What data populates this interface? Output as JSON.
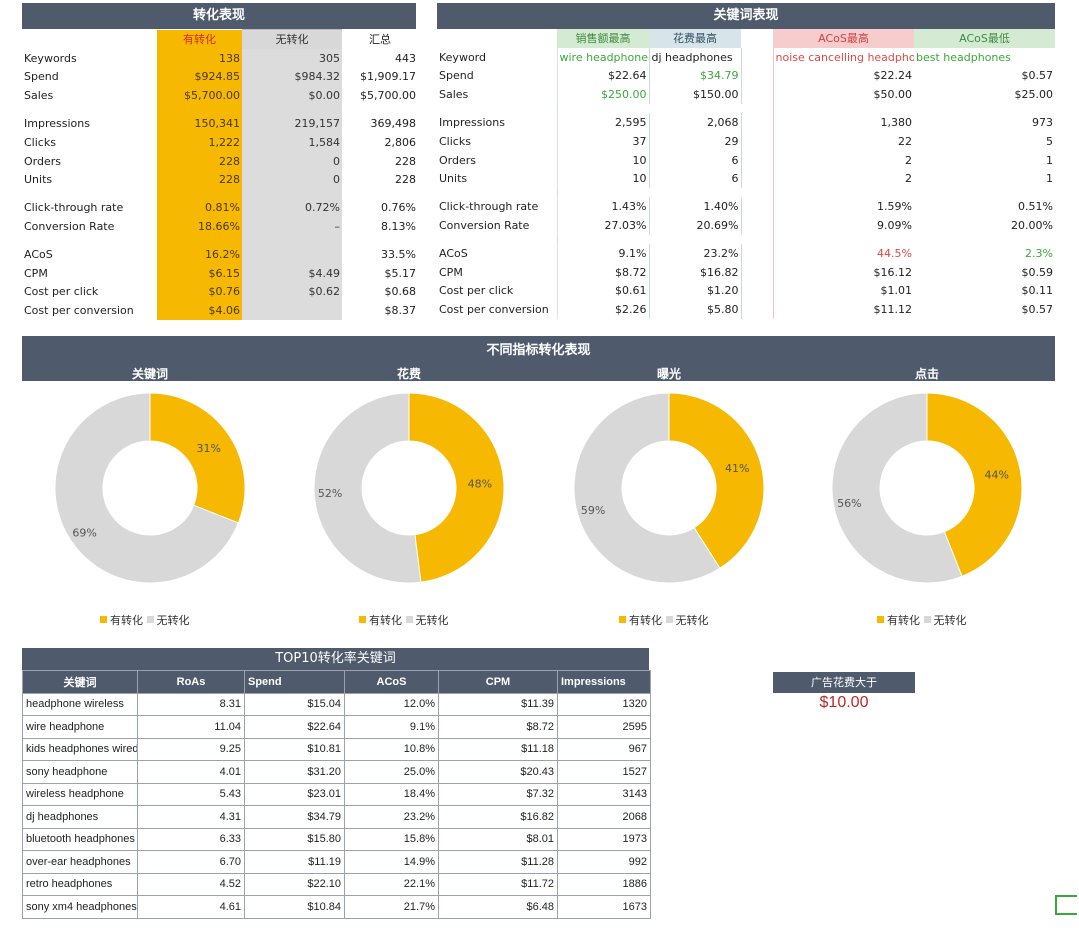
{
  "conversion_panel": {
    "title": "转化表现",
    "col_yes": "有转化",
    "col_no": "无转化",
    "col_total": "汇总",
    "rows": [
      {
        "label": "Keywords",
        "yes": "138",
        "no": "305",
        "total": "443"
      },
      {
        "label": "Spend",
        "yes": "$924.85",
        "no": "$984.32",
        "total": "$1,909.17"
      },
      {
        "label": "Sales",
        "yes": "$5,700.00",
        "no": "$0.00",
        "total": "$5,700.00"
      },
      {
        "gap": true
      },
      {
        "label": "Impressions",
        "yes": "150,341",
        "no": "219,157",
        "total": "369,498"
      },
      {
        "label": "Clicks",
        "yes": "1,222",
        "no": "1,584",
        "total": "2,806"
      },
      {
        "label": "Orders",
        "yes": "228",
        "no": "0",
        "total": "228"
      },
      {
        "label": "Units",
        "yes": "228",
        "no": "0",
        "total": "228"
      },
      {
        "gap": true
      },
      {
        "label": "Click-through rate",
        "yes": "0.81%",
        "no": "0.72%",
        "total": "0.76%"
      },
      {
        "label": "Conversion Rate",
        "yes": "18.66%",
        "no": "–",
        "total": "8.13%"
      },
      {
        "gap": true
      },
      {
        "label": "ACoS",
        "yes": "16.2%",
        "no": "",
        "total": "33.5%"
      },
      {
        "label": "CPM",
        "yes": "$6.15",
        "no": "$4.49",
        "total": "$5.17"
      },
      {
        "label": "Cost per click",
        "yes": "$0.76",
        "no": "$0.62",
        "total": "$0.68"
      },
      {
        "label": "Cost per conversion",
        "yes": "$4.06",
        "no": "",
        "total": "$8.37"
      }
    ]
  },
  "keyword_panel": {
    "title": "关键词表现",
    "headers": [
      "销售额最高",
      "花费最高",
      "ACoS最高",
      "ACoS最低"
    ],
    "rows": [
      {
        "label": "Keyword",
        "v": [
          "wire headphone",
          "dj headphones",
          "noise cancelling headphon",
          "best headphones"
        ]
      },
      {
        "label": "Spend",
        "v": [
          "$22.64",
          "$34.79",
          "$22.24",
          "$0.57"
        ]
      },
      {
        "label": "Sales",
        "v": [
          "$250.00",
          "$150.00",
          "$50.00",
          "$25.00"
        ]
      },
      {
        "gap": true
      },
      {
        "label": "Impressions",
        "v": [
          "2,595",
          "2,068",
          "1,380",
          "973"
        ]
      },
      {
        "label": "Clicks",
        "v": [
          "37",
          "29",
          "22",
          "5"
        ]
      },
      {
        "label": "Orders",
        "v": [
          "10",
          "6",
          "2",
          "1"
        ]
      },
      {
        "label": "Units",
        "v": [
          "10",
          "6",
          "2",
          "1"
        ]
      },
      {
        "gap": true
      },
      {
        "label": "Click-through rate",
        "v": [
          "1.43%",
          "1.40%",
          "1.59%",
          "0.51%"
        ]
      },
      {
        "label": "Conversion Rate",
        "v": [
          "27.03%",
          "20.69%",
          "9.09%",
          "20.00%"
        ]
      },
      {
        "gap": true
      },
      {
        "label": "ACoS",
        "v": [
          "9.1%",
          "23.2%",
          "44.5%",
          "2.3%"
        ]
      },
      {
        "label": "CPM",
        "v": [
          "$8.72",
          "$16.82",
          "$16.12",
          "$0.59"
        ]
      },
      {
        "label": "Cost per click",
        "v": [
          "$0.61",
          "$1.20",
          "$1.01",
          "$0.11"
        ]
      },
      {
        "label": "Cost per conversion",
        "v": [
          "$2.26",
          "$5.80",
          "$11.12",
          "$0.57"
        ]
      }
    ]
  },
  "charts_panel": {
    "title": "不同指标转化表现"
  },
  "chart_data": [
    {
      "type": "pie",
      "title": "关键词",
      "categories": [
        "有转化",
        "无转化"
      ],
      "values": [
        31,
        69
      ],
      "colors": [
        "#f6b800",
        "#d8d8d8"
      ]
    },
    {
      "type": "pie",
      "title": "花费",
      "categories": [
        "有转化",
        "无转化"
      ],
      "values": [
        48,
        52
      ],
      "colors": [
        "#f6b800",
        "#d8d8d8"
      ]
    },
    {
      "type": "pie",
      "title": "曝光",
      "categories": [
        "有转化",
        "无转化"
      ],
      "values": [
        41,
        59
      ],
      "colors": [
        "#f6b800",
        "#d8d8d8"
      ]
    },
    {
      "type": "pie",
      "title": "点击",
      "categories": [
        "有转化",
        "无转化"
      ],
      "values": [
        44,
        56
      ],
      "colors": [
        "#f6b800",
        "#d8d8d8"
      ]
    }
  ],
  "top10": {
    "title": "TOP10转化率关键词",
    "headers": [
      "关键词",
      "RoAs",
      "Spend",
      "ACoS",
      "CPM",
      "Impressions"
    ],
    "rows": [
      [
        "headphone wireless",
        "8.31",
        "$15.04",
        "12.0%",
        "$11.39",
        "1320"
      ],
      [
        "wire headphone",
        "11.04",
        "$22.64",
        "9.1%",
        "$8.72",
        "2595"
      ],
      [
        "kids headphones wired",
        "9.25",
        "$10.81",
        "10.8%",
        "$11.18",
        "967"
      ],
      [
        "sony headphone",
        "4.01",
        "$31.20",
        "25.0%",
        "$20.43",
        "1527"
      ],
      [
        "wireless headphone",
        "5.43",
        "$23.01",
        "18.4%",
        "$7.32",
        "3143"
      ],
      [
        "dj headphones",
        "4.31",
        "$34.79",
        "23.2%",
        "$16.82",
        "2068"
      ],
      [
        "bluetooth headphones",
        "6.33",
        "$15.80",
        "15.8%",
        "$8.01",
        "1973"
      ],
      [
        "over-ear headphones",
        "6.70",
        "$11.19",
        "14.9%",
        "$11.28",
        "992"
      ],
      [
        "retro headphones",
        "4.52",
        "$22.10",
        "22.1%",
        "$11.72",
        "1886"
      ],
      [
        "sony xm4 headphones",
        "4.61",
        "$10.84",
        "21.7%",
        "$6.48",
        "1673"
      ]
    ]
  },
  "threshold": {
    "label": "广告花费大于",
    "value": "$10.00"
  },
  "colors": {
    "header_bg": "#4f5b6c",
    "converted": "#f6b800",
    "not_converted": "#d8d8d8"
  }
}
